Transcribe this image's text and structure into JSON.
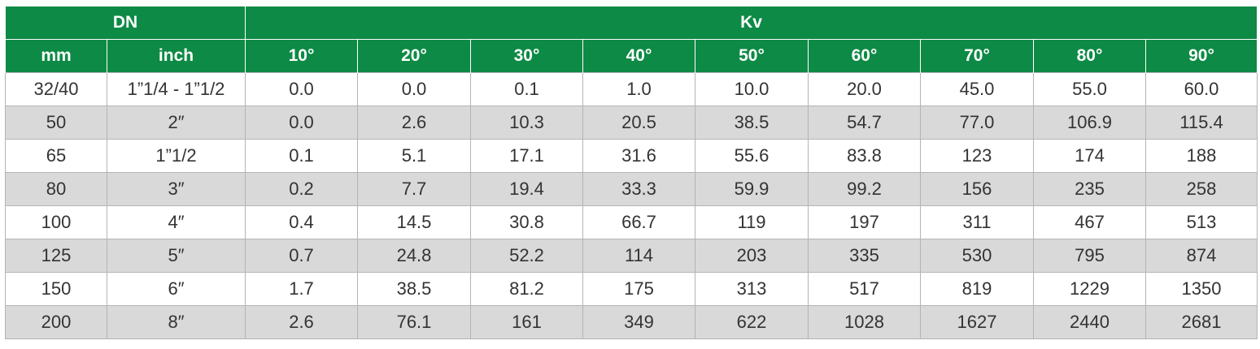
{
  "header": {
    "group_dn": "DN",
    "group_kv": "Kv",
    "col_mm": "mm",
    "col_inch": "inch",
    "angles": [
      "10°",
      "20°",
      "30°",
      "40°",
      "50°",
      "60°",
      "70°",
      "80°",
      "90°"
    ]
  },
  "rows": [
    {
      "mm": "32/40",
      "inch": "1”1/4 - 1”1/2",
      "kv": [
        "0.0",
        "0.0",
        "0.1",
        "1.0",
        "10.0",
        "20.0",
        "45.0",
        "55.0",
        "60.0"
      ]
    },
    {
      "mm": "50",
      "inch": "2″",
      "kv": [
        "0.0",
        "2.6",
        "10.3",
        "20.5",
        "38.5",
        "54.7",
        "77.0",
        "106.9",
        "115.4"
      ]
    },
    {
      "mm": "65",
      "inch": "1”1/2",
      "kv": [
        "0.1",
        "5.1",
        "17.1",
        "31.6",
        "55.6",
        "83.8",
        "123",
        "174",
        "188"
      ]
    },
    {
      "mm": "80",
      "inch": "3″",
      "kv": [
        "0.2",
        "7.7",
        "19.4",
        "33.3",
        "59.9",
        "99.2",
        "156",
        "235",
        "258"
      ]
    },
    {
      "mm": "100",
      "inch": "4″",
      "kv": [
        "0.4",
        "14.5",
        "30.8",
        "66.7",
        "119",
        "197",
        "311",
        "467",
        "513"
      ]
    },
    {
      "mm": "125",
      "inch": "5″",
      "kv": [
        "0.7",
        "24.8",
        "52.2",
        "114",
        "203",
        "335",
        "530",
        "795",
        "874"
      ]
    },
    {
      "mm": "150",
      "inch": "6″",
      "kv": [
        "1.7",
        "38.5",
        "81.2",
        "175",
        "313",
        "517",
        "819",
        "1229",
        "1350"
      ]
    },
    {
      "mm": "200",
      "inch": "8″",
      "kv": [
        "2.6",
        "76.1",
        "161",
        "349",
        "622",
        "1028",
        "1627",
        "2440",
        "2681"
      ]
    }
  ],
  "colors": {
    "header_green": "#0d8a45",
    "row_alt": "#d9d9d9"
  }
}
